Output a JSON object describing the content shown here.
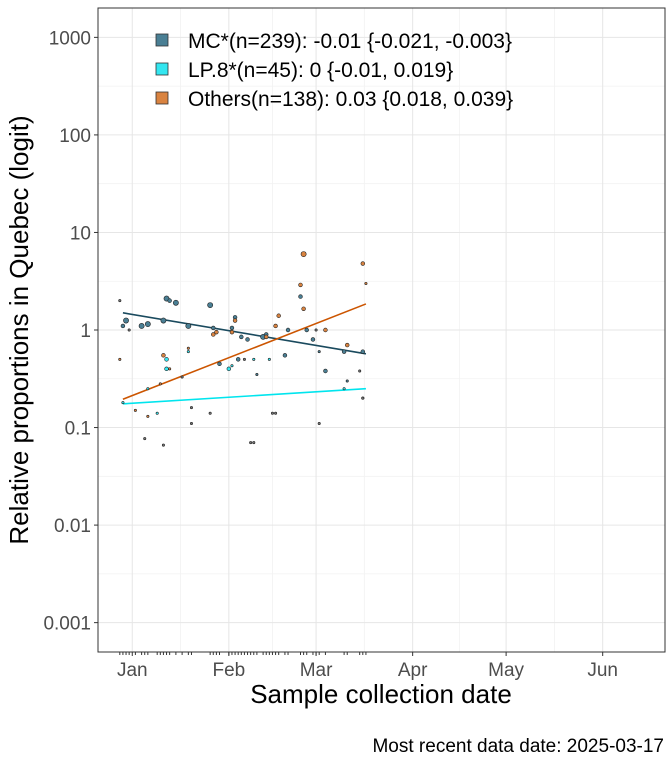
{
  "chart_data": {
    "type": "scatter",
    "xlabel": "Sample collection date",
    "ylabel": "Relative proportions in Quebec (logit)",
    "y_scale": "log",
    "x_range": [
      "2024-12-21",
      "2025-06-21"
    ],
    "y_range": [
      0.0005,
      2000
    ],
    "x_ticks": [
      {
        "date": "2025-01-01",
        "label": "Jan"
      },
      {
        "date": "2025-02-01",
        "label": "Feb"
      },
      {
        "date": "2025-03-01",
        "label": "Mar"
      },
      {
        "date": "2025-04-01",
        "label": "Apr"
      },
      {
        "date": "2025-05-01",
        "label": "May"
      },
      {
        "date": "2025-06-01",
        "label": "Jun"
      }
    ],
    "y_ticks": [
      {
        "value": 0.001,
        "label": "0.001"
      },
      {
        "value": 0.01,
        "label": "0.01"
      },
      {
        "value": 0.1,
        "label": "0.1"
      },
      {
        "value": 1,
        "label": "1"
      },
      {
        "value": 10,
        "label": "10"
      },
      {
        "value": 100,
        "label": "100"
      },
      {
        "value": 1000,
        "label": "1000"
      }
    ],
    "grid": true,
    "legend_position": "top-left inside",
    "series": [
      {
        "name": "MC*(n=239): -0.01 {-0.021, -0.003}",
        "color": "#4a7f94",
        "line_color": "#1a4a5e",
        "fit": [
          {
            "x": "2024-12-29",
            "y": 1.5
          },
          {
            "x": "2025-03-17",
            "y": 0.57
          }
        ],
        "points": [
          {
            "x": "2024-12-29",
            "y": 1.1,
            "size": 2
          },
          {
            "x": "2024-12-30",
            "y": 1.25,
            "size": 3
          },
          {
            "x": "2025-01-04",
            "y": 1.1,
            "size": 3
          },
          {
            "x": "2025-01-06",
            "y": 1.15,
            "size": 3
          },
          {
            "x": "2025-01-11",
            "y": 1.25,
            "size": 3
          },
          {
            "x": "2025-01-12",
            "y": 2.1,
            "size": 3
          },
          {
            "x": "2025-01-13",
            "y": 2.0,
            "size": 2
          },
          {
            "x": "2025-01-15",
            "y": 1.9,
            "size": 3
          },
          {
            "x": "2025-01-19",
            "y": 1.1,
            "size": 3
          },
          {
            "x": "2025-01-26",
            "y": 1.8,
            "size": 3
          },
          {
            "x": "2025-01-27",
            "y": 1.05,
            "size": 2
          },
          {
            "x": "2025-01-29",
            "y": 0.45,
            "size": 2
          },
          {
            "x": "2025-02-02",
            "y": 1.05,
            "size": 2
          },
          {
            "x": "2025-02-03",
            "y": 1.35,
            "size": 2
          },
          {
            "x": "2025-02-04",
            "y": 0.5,
            "size": 2
          },
          {
            "x": "2025-02-05",
            "y": 0.85,
            "size": 2
          },
          {
            "x": "2025-02-07",
            "y": 0.8,
            "size": 2
          },
          {
            "x": "2025-02-10",
            "y": 0.35,
            "size": 1
          },
          {
            "x": "2025-02-12",
            "y": 0.85,
            "size": 3
          },
          {
            "x": "2025-02-13",
            "y": 0.9,
            "size": 2
          },
          {
            "x": "2025-02-19",
            "y": 0.55,
            "size": 2
          },
          {
            "x": "2025-02-20",
            "y": 1.0,
            "size": 2
          },
          {
            "x": "2025-02-24",
            "y": 2.2,
            "size": 2
          },
          {
            "x": "2025-02-26",
            "y": 1.0,
            "size": 2
          },
          {
            "x": "2025-02-28",
            "y": 0.8,
            "size": 2
          },
          {
            "x": "2025-03-02",
            "y": 0.6,
            "size": 1
          },
          {
            "x": "2025-03-04",
            "y": 0.38,
            "size": 2
          },
          {
            "x": "2025-03-10",
            "y": 0.6,
            "size": 2
          },
          {
            "x": "2025-03-11",
            "y": 0.3,
            "size": 1
          },
          {
            "x": "2025-03-16",
            "y": 0.6,
            "size": 2
          }
        ]
      },
      {
        "name": "LP.8*(n=45): 0 {-0.01, 0.019}",
        "color": "#33e6f0",
        "line_color": "#00e5ee",
        "fit": [
          {
            "x": "2024-12-29",
            "y": 0.175
          },
          {
            "x": "2025-03-17",
            "y": 0.25
          }
        ],
        "points": [
          {
            "x": "2024-12-29",
            "y": 0.18,
            "size": 1
          },
          {
            "x": "2025-01-06",
            "y": 0.25,
            "size": 1
          },
          {
            "x": "2025-01-09",
            "y": 0.14,
            "size": 1
          },
          {
            "x": "2025-01-12",
            "y": 0.5,
            "size": 2
          },
          {
            "x": "2025-01-12",
            "y": 0.4,
            "size": 2
          },
          {
            "x": "2025-01-19",
            "y": 0.6,
            "size": 1
          },
          {
            "x": "2025-02-01",
            "y": 0.4,
            "size": 2
          },
          {
            "x": "2025-02-02",
            "y": 0.43,
            "size": 1
          },
          {
            "x": "2025-02-09",
            "y": 0.5,
            "size": 1
          },
          {
            "x": "2025-02-14",
            "y": 0.5,
            "size": 1
          },
          {
            "x": "2025-03-10",
            "y": 0.25,
            "size": 1
          },
          {
            "x": "2025-03-16",
            "y": 0.2,
            "size": 1
          }
        ]
      },
      {
        "name": "Others(n=138): 0.03 {0.018, 0.039}",
        "color": "#d98340",
        "line_color": "#cc5500",
        "fit": [
          {
            "x": "2024-12-29",
            "y": 0.195
          },
          {
            "x": "2025-03-17",
            "y": 1.85
          }
        ],
        "points": [
          {
            "x": "2024-12-28",
            "y": 0.5,
            "size": 1
          },
          {
            "x": "2025-01-02",
            "y": 0.15,
            "size": 1
          },
          {
            "x": "2025-01-06",
            "y": 0.13,
            "size": 1
          },
          {
            "x": "2025-01-10",
            "y": 0.28,
            "size": 1
          },
          {
            "x": "2025-01-11",
            "y": 0.55,
            "size": 2
          },
          {
            "x": "2025-01-13",
            "y": 0.4,
            "size": 1
          },
          {
            "x": "2025-01-19",
            "y": 0.65,
            "size": 1
          },
          {
            "x": "2025-01-27",
            "y": 0.9,
            "size": 2
          },
          {
            "x": "2025-01-28",
            "y": 0.95,
            "size": 2
          },
          {
            "x": "2025-02-02",
            "y": 0.95,
            "size": 2
          },
          {
            "x": "2025-02-03",
            "y": 1.25,
            "size": 2
          },
          {
            "x": "2025-02-13",
            "y": 0.85,
            "size": 2
          },
          {
            "x": "2025-02-16",
            "y": 1.1,
            "size": 2
          },
          {
            "x": "2025-02-17",
            "y": 1.4,
            "size": 2
          },
          {
            "x": "2025-02-24",
            "y": 2.9,
            "size": 2
          },
          {
            "x": "2025-02-25",
            "y": 6.0,
            "size": 3
          },
          {
            "x": "2025-02-25",
            "y": 1.65,
            "size": 2
          },
          {
            "x": "2025-03-04",
            "y": 1.0,
            "size": 2
          },
          {
            "x": "2025-03-11",
            "y": 0.7,
            "size": 2
          },
          {
            "x": "2025-03-16",
            "y": 4.8,
            "size": 2
          },
          {
            "x": "2025-03-17",
            "y": 3.0,
            "size": 1
          }
        ]
      },
      {
        "name": "",
        "color": "#777777",
        "line_color": "",
        "fit": [],
        "points": [
          {
            "x": "2024-12-28",
            "y": 2.0,
            "size": 1
          },
          {
            "x": "2024-12-31",
            "y": 1.0,
            "size": 1
          },
          {
            "x": "2025-01-05",
            "y": 0.077,
            "size": 1
          },
          {
            "x": "2025-01-11",
            "y": 0.066,
            "size": 1
          },
          {
            "x": "2025-01-17",
            "y": 0.33,
            "size": 1
          },
          {
            "x": "2025-01-20",
            "y": 0.16,
            "size": 1
          },
          {
            "x": "2025-01-20",
            "y": 0.11,
            "size": 1
          },
          {
            "x": "2025-01-26",
            "y": 0.14,
            "size": 1
          },
          {
            "x": "2025-02-06",
            "y": 0.5,
            "size": 1
          },
          {
            "x": "2025-02-08",
            "y": 0.07,
            "size": 1
          },
          {
            "x": "2025-02-09",
            "y": 0.07,
            "size": 1
          },
          {
            "x": "2025-02-15",
            "y": 0.14,
            "size": 1
          },
          {
            "x": "2025-02-16",
            "y": 0.14,
            "size": 1
          },
          {
            "x": "2025-03-01",
            "y": 1.0,
            "size": 1
          },
          {
            "x": "2025-03-02",
            "y": 0.11,
            "size": 1
          },
          {
            "x": "2025-03-15",
            "y": 0.38,
            "size": 1
          },
          {
            "x": "2025-03-16",
            "y": 0.2,
            "size": 1
          }
        ]
      }
    ]
  },
  "caption": "Most recent data date: 2025-03-17"
}
